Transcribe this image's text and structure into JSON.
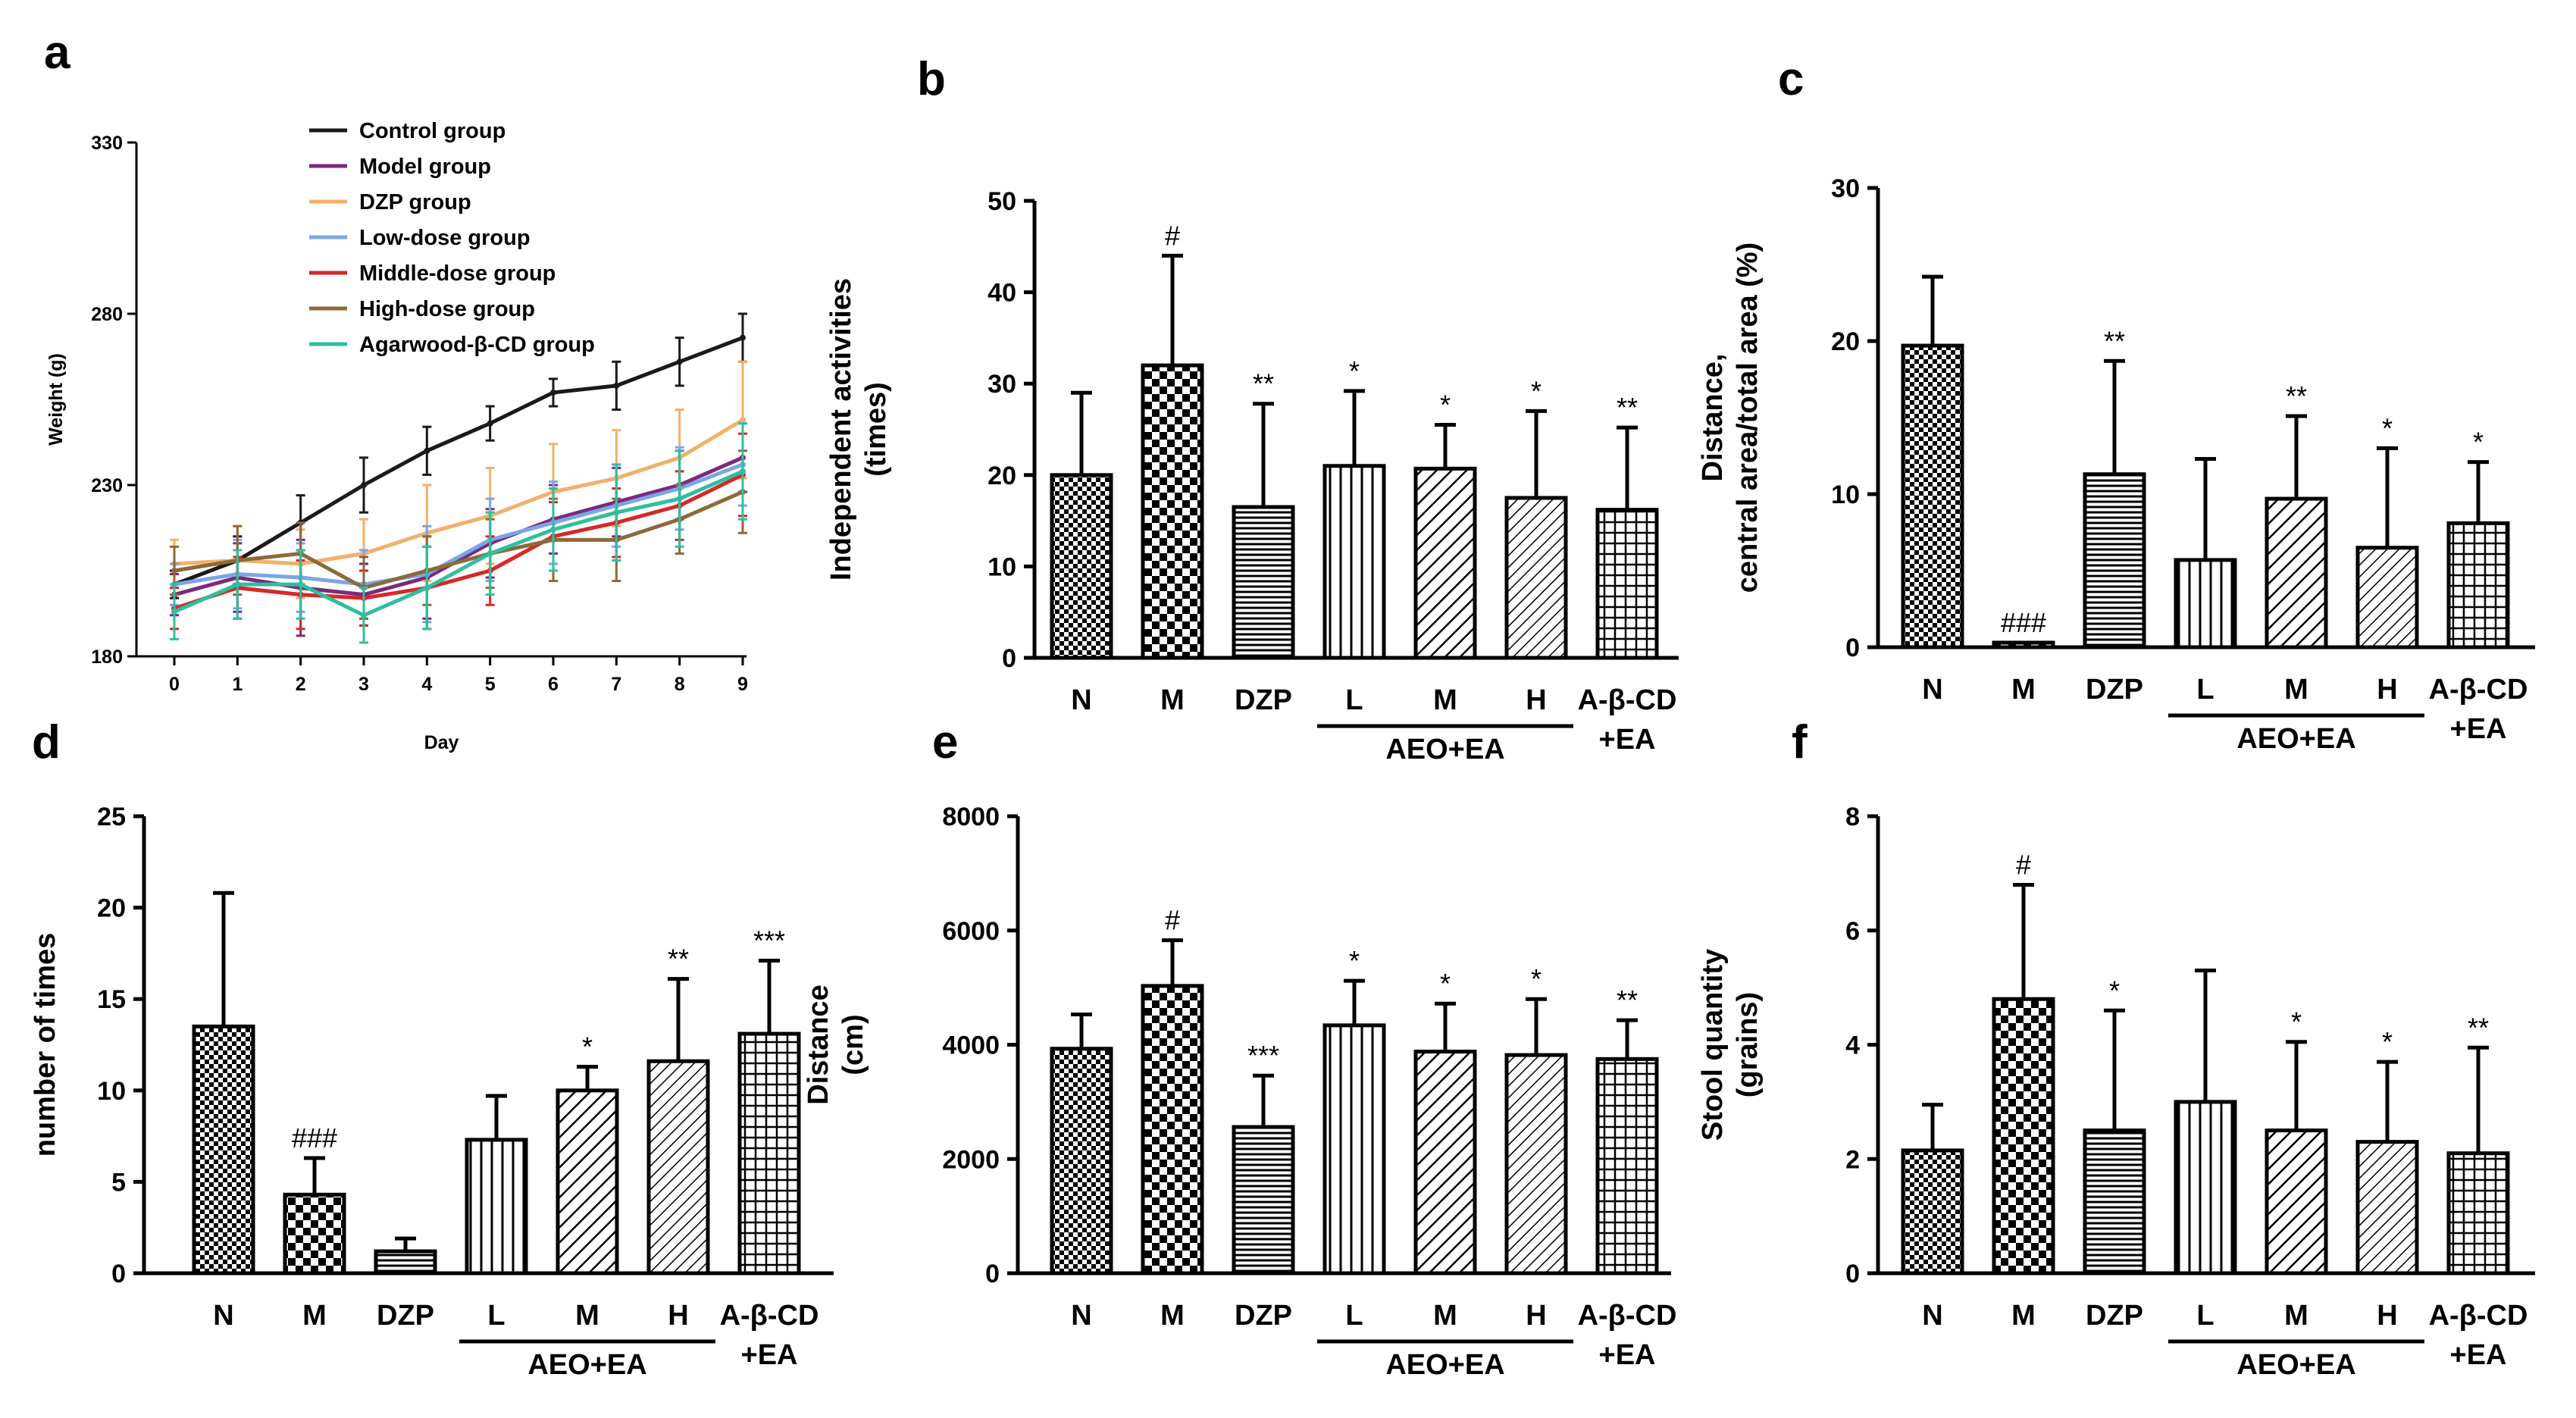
{
  "colors": {
    "control": "#1a1a1a",
    "model": "#7b2a7b",
    "dzp": "#f2b06a",
    "low": "#7aa6e8",
    "middle": "#d62828",
    "high": "#8b6a3a",
    "agarwood": "#2fbf9f"
  },
  "chart_data": [
    {
      "id": "a",
      "panel_label": "a",
      "type": "line",
      "xlabel": "Day",
      "ylabel": "Weight (g)",
      "x": [
        0,
        1,
        2,
        3,
        4,
        5,
        6,
        7,
        8,
        9
      ],
      "x_tick_labels": [
        "0",
        "1",
        "2",
        "3",
        "4",
        "5",
        "6",
        "7",
        "8",
        "9"
      ],
      "ylim": [
        180,
        330
      ],
      "y_ticks": [
        180,
        230,
        280,
        330
      ],
      "y_tick_labels": [
        "180",
        "230",
        "280",
        "330"
      ],
      "legend_position": "top-left",
      "series": [
        {
          "name": "Control group",
          "color_key": "control",
          "values": [
            201,
            208,
            219,
            230,
            240,
            248,
            257,
            259,
            266,
            273
          ],
          "errors": [
            4,
            7,
            8,
            8,
            7,
            5,
            4,
            7,
            7,
            7
          ]
        },
        {
          "name": "Model group",
          "color_key": "model",
          "values": [
            198,
            203,
            200,
            198,
            203,
            213,
            220,
            225,
            230,
            238
          ],
          "errors": [
            6,
            10,
            14,
            9,
            12,
            10,
            10,
            10,
            10,
            10
          ]
        },
        {
          "name": "DZP group",
          "color_key": "dzp",
          "values": [
            207,
            208,
            207,
            210,
            216,
            221,
            228,
            232,
            238,
            249
          ],
          "errors": [
            7,
            10,
            10,
            10,
            14,
            14,
            14,
            14,
            14,
            17
          ]
        },
        {
          "name": "Low-dose group",
          "color_key": "low",
          "values": [
            201,
            204,
            203,
            201,
            204,
            214,
            219,
            224,
            229,
            236
          ],
          "errors": [
            6,
            10,
            10,
            10,
            14,
            12,
            12,
            12,
            12,
            12
          ]
        },
        {
          "name": "Middle-dose group",
          "color_key": "middle",
          "values": [
            194,
            200,
            198,
            197,
            200,
            205,
            215,
            219,
            224,
            233
          ],
          "errors": [
            6,
            9,
            10,
            8,
            12,
            10,
            10,
            10,
            10,
            12
          ]
        },
        {
          "name": "High-dose group",
          "color_key": "high",
          "values": [
            205,
            208,
            210,
            200,
            205,
            210,
            214,
            214,
            220,
            228
          ],
          "errors": [
            7,
            10,
            9,
            9,
            10,
            10,
            12,
            12,
            10,
            12
          ]
        },
        {
          "name": "Agarwood-β-CD group",
          "color_key": "agarwood",
          "values": [
            193,
            201,
            201,
            192,
            200,
            210,
            217,
            222,
            226,
            234
          ],
          "errors": [
            8,
            10,
            10,
            8,
            12,
            12,
            12,
            14,
            14,
            14
          ]
        }
      ]
    },
    {
      "id": "b",
      "panel_label": "b",
      "type": "bar",
      "ylabel_lines": [
        "Independent activities",
        "(times)"
      ],
      "categories": [
        "N",
        "M",
        "DZP",
        "L",
        "M",
        "H",
        "A-β-CD"
      ],
      "category_sub": [
        "",
        "",
        "",
        "",
        "",
        "",
        "+EA"
      ],
      "group_label": "AEO+EA",
      "values": [
        20,
        32,
        16.5,
        21,
        20.7,
        17.5,
        16.2
      ],
      "errors": [
        9,
        12,
        11.3,
        8.2,
        4.8,
        9.5,
        9
      ],
      "significance": [
        "",
        "#",
        "**",
        "*",
        "*",
        "*",
        "**"
      ],
      "ylim": [
        0,
        50
      ],
      "y_ticks": [
        0,
        10,
        20,
        30,
        40,
        50
      ],
      "y_tick_labels": [
        "0",
        "10",
        "20",
        "30",
        "40",
        "50"
      ]
    },
    {
      "id": "c",
      "panel_label": "c",
      "type": "bar",
      "ylabel_lines": [
        "Distance,",
        "central area/total area (%)"
      ],
      "categories": [
        "N",
        "M",
        "DZP",
        "L",
        "M",
        "H",
        "A-β-CD"
      ],
      "category_sub": [
        "",
        "",
        "",
        "",
        "",
        "",
        "+EA"
      ],
      "group_label": "AEO+EA",
      "values": [
        19.7,
        0.3,
        11.3,
        5.7,
        9.7,
        6.5,
        8.1
      ],
      "errors": [
        4.5,
        0,
        7.4,
        6.6,
        5.4,
        6.5,
        4
      ],
      "significance": [
        "",
        "###",
        "**",
        "",
        "**",
        "*",
        "*"
      ],
      "ylim": [
        0,
        30
      ],
      "y_ticks": [
        0,
        10,
        20,
        30
      ],
      "y_tick_labels": [
        "0",
        "10",
        "20",
        "30"
      ]
    },
    {
      "id": "d",
      "panel_label": "d",
      "type": "bar",
      "ylabel_lines": [
        "number of times"
      ],
      "categories": [
        "N",
        "M",
        "DZP",
        "L",
        "M",
        "H",
        "A-β-CD"
      ],
      "category_sub": [
        "",
        "",
        "",
        "",
        "",
        "",
        "+EA"
      ],
      "group_label": "AEO+EA",
      "values": [
        13.5,
        4.3,
        1.2,
        7.3,
        10,
        11.6,
        13.1
      ],
      "errors": [
        7.3,
        2,
        0.7,
        2.4,
        1.3,
        4.5,
        4
      ],
      "significance": [
        "",
        "###",
        "",
        "",
        "*",
        "**",
        "***"
      ],
      "ylim": [
        0,
        25
      ],
      "y_ticks": [
        0,
        5,
        10,
        15,
        20,
        25
      ],
      "y_tick_labels": [
        "0",
        "5",
        "10",
        "15",
        "20",
        "25"
      ]
    },
    {
      "id": "e",
      "panel_label": "e",
      "type": "bar",
      "ylabel_lines": [
        "Distance",
        "(cm)"
      ],
      "categories": [
        "N",
        "M",
        "DZP",
        "L",
        "M",
        "H",
        "A-β-CD"
      ],
      "category_sub": [
        "",
        "",
        "",
        "",
        "",
        "",
        "+EA"
      ],
      "group_label": "AEO+EA",
      "values": [
        3930,
        5030,
        2560,
        4340,
        3880,
        3820,
        3750
      ],
      "errors": [
        600,
        800,
        900,
        780,
        840,
        980,
        680
      ],
      "significance": [
        "",
        "#",
        "***",
        "*",
        "*",
        "*",
        "**"
      ],
      "ylim": [
        0,
        8000
      ],
      "y_ticks": [
        0,
        2000,
        4000,
        6000,
        8000
      ],
      "y_tick_labels": [
        "0",
        "2000",
        "4000",
        "6000",
        "8000"
      ]
    },
    {
      "id": "f",
      "panel_label": "f",
      "type": "bar",
      "ylabel_lines": [
        "Stool quantity",
        "(grains)"
      ],
      "categories": [
        "N",
        "M",
        "DZP",
        "L",
        "M",
        "H",
        "A-β-CD"
      ],
      "category_sub": [
        "",
        "",
        "",
        "",
        "",
        "",
        "+EA"
      ],
      "group_label": "AEO+EA",
      "values": [
        2.15,
        4.8,
        2.5,
        3,
        2.5,
        2.3,
        2.1
      ],
      "errors": [
        0.8,
        2,
        2.1,
        2.3,
        1.55,
        1.4,
        1.85
      ],
      "significance": [
        "",
        "#",
        "*",
        "",
        "*",
        "*",
        "**"
      ],
      "ylim": [
        0,
        8
      ],
      "y_ticks": [
        0,
        2,
        4,
        6,
        8
      ],
      "y_tick_labels": [
        "0",
        "2",
        "4",
        "6",
        "8"
      ]
    }
  ]
}
